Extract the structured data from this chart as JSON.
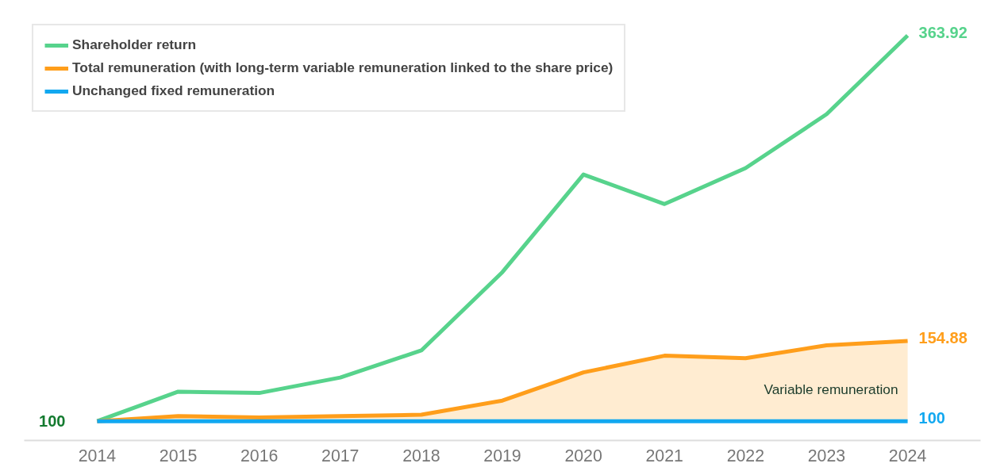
{
  "chart_data": {
    "type": "line",
    "categories": [
      "2014",
      "2015",
      "2016",
      "2017",
      "2018",
      "2019",
      "2020",
      "2021",
      "2022",
      "2023",
      "2024"
    ],
    "series": [
      {
        "name": "Shareholder return",
        "color": "#57d38c",
        "values": [
          100,
          120.2,
          119.3,
          129.9,
          148.4,
          202,
          268.8,
          248.6,
          273.2,
          310.1,
          363.92
        ],
        "value_labels": [
          null,
          null,
          null,
          null,
          null,
          null,
          null,
          null,
          null,
          null,
          "363.92"
        ]
      },
      {
        "name": "Total remuneration (with long-term variable remuneration linked to the share price)",
        "color": "#ff9e1b",
        "values": [
          100,
          103.5,
          102.6,
          103.5,
          104.4,
          114.1,
          133.4,
          144.8,
          143.1,
          151.9,
          154.88
        ],
        "lower": [
          100,
          100,
          100,
          100,
          100,
          100,
          100,
          100,
          100,
          100,
          100
        ],
        "upper": [
          100,
          103.5,
          102.6,
          103.5,
          104.4,
          114.1,
          133.4,
          144.8,
          143.1,
          151.9,
          154.88
        ],
        "value_labels": [
          null,
          null,
          null,
          null,
          null,
          null,
          null,
          null,
          null,
          null,
          "154.88"
        ]
      },
      {
        "name": "Unchanged fixed remuneration",
        "color": "#12a8f0",
        "values": [
          100,
          100,
          100,
          100,
          100,
          100,
          100,
          100,
          100,
          100,
          100
        ],
        "value_labels": [
          null,
          null,
          null,
          null,
          null,
          null,
          null,
          null,
          null,
          null,
          "100"
        ]
      }
    ],
    "annotations": [
      {
        "text": "100",
        "x": "2014",
        "y": 100
      },
      {
        "text": "Variable remuneration",
        "x": "2024",
        "y": 122
      }
    ],
    "tick_labels": "x",
    "grid": false,
    "legend": "top left",
    "marker": "none",
    "line_style": "solid"
  }
}
